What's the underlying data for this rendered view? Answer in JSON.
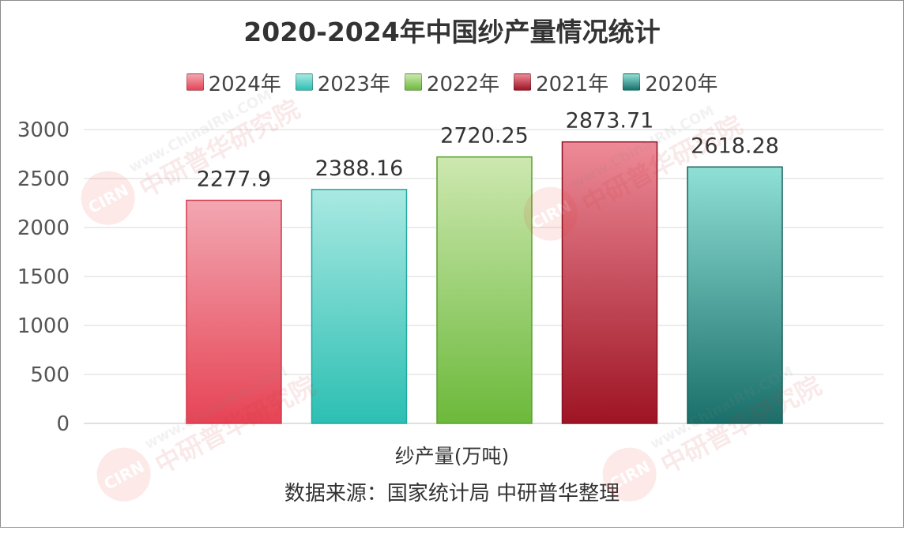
{
  "chart_data": {
    "type": "bar",
    "title": "2020-2024年中国纱产量情况统计",
    "xlabel": "纱产量(万吨)",
    "ylabel": "",
    "ylim": [
      0,
      3000
    ],
    "yticks": [
      0,
      500,
      1000,
      1500,
      2000,
      2500,
      3000
    ],
    "grid": true,
    "legend_position": "top",
    "categories": [
      "纱产量(万吨)"
    ],
    "series": [
      {
        "name": "2024年",
        "value": 2277.9,
        "label": "2277.9",
        "color_top": "#f2a7b2",
        "color_bottom": "#e64455",
        "border": "#d23a4b"
      },
      {
        "name": "2023年",
        "value": 2388.16,
        "label": "2388.16",
        "color_top": "#a9e9e2",
        "color_bottom": "#2cbfb3",
        "border": "#22a89d"
      },
      {
        "name": "2022年",
        "value": 2720.25,
        "label": "2720.25",
        "color_top": "#cde8b0",
        "color_bottom": "#6cb93b",
        "border": "#5aa12e"
      },
      {
        "name": "2021年",
        "value": 2873.71,
        "label": "2873.71",
        "color_top": "#ee8a97",
        "color_bottom": "#9e1424",
        "border": "#8c1020"
      },
      {
        "name": "2020年",
        "value": 2618.28,
        "label": "2618.28",
        "color_top": "#8fe0d6",
        "color_bottom": "#1a6f6a",
        "border": "#175f5a"
      }
    ]
  },
  "source_text": "数据来源：国家统计局 中研普华整理",
  "watermark": {
    "brand_text": "中研普华研究院",
    "site_text": "www.ChinaIRN.COM",
    "logo_text": "CIRN"
  }
}
